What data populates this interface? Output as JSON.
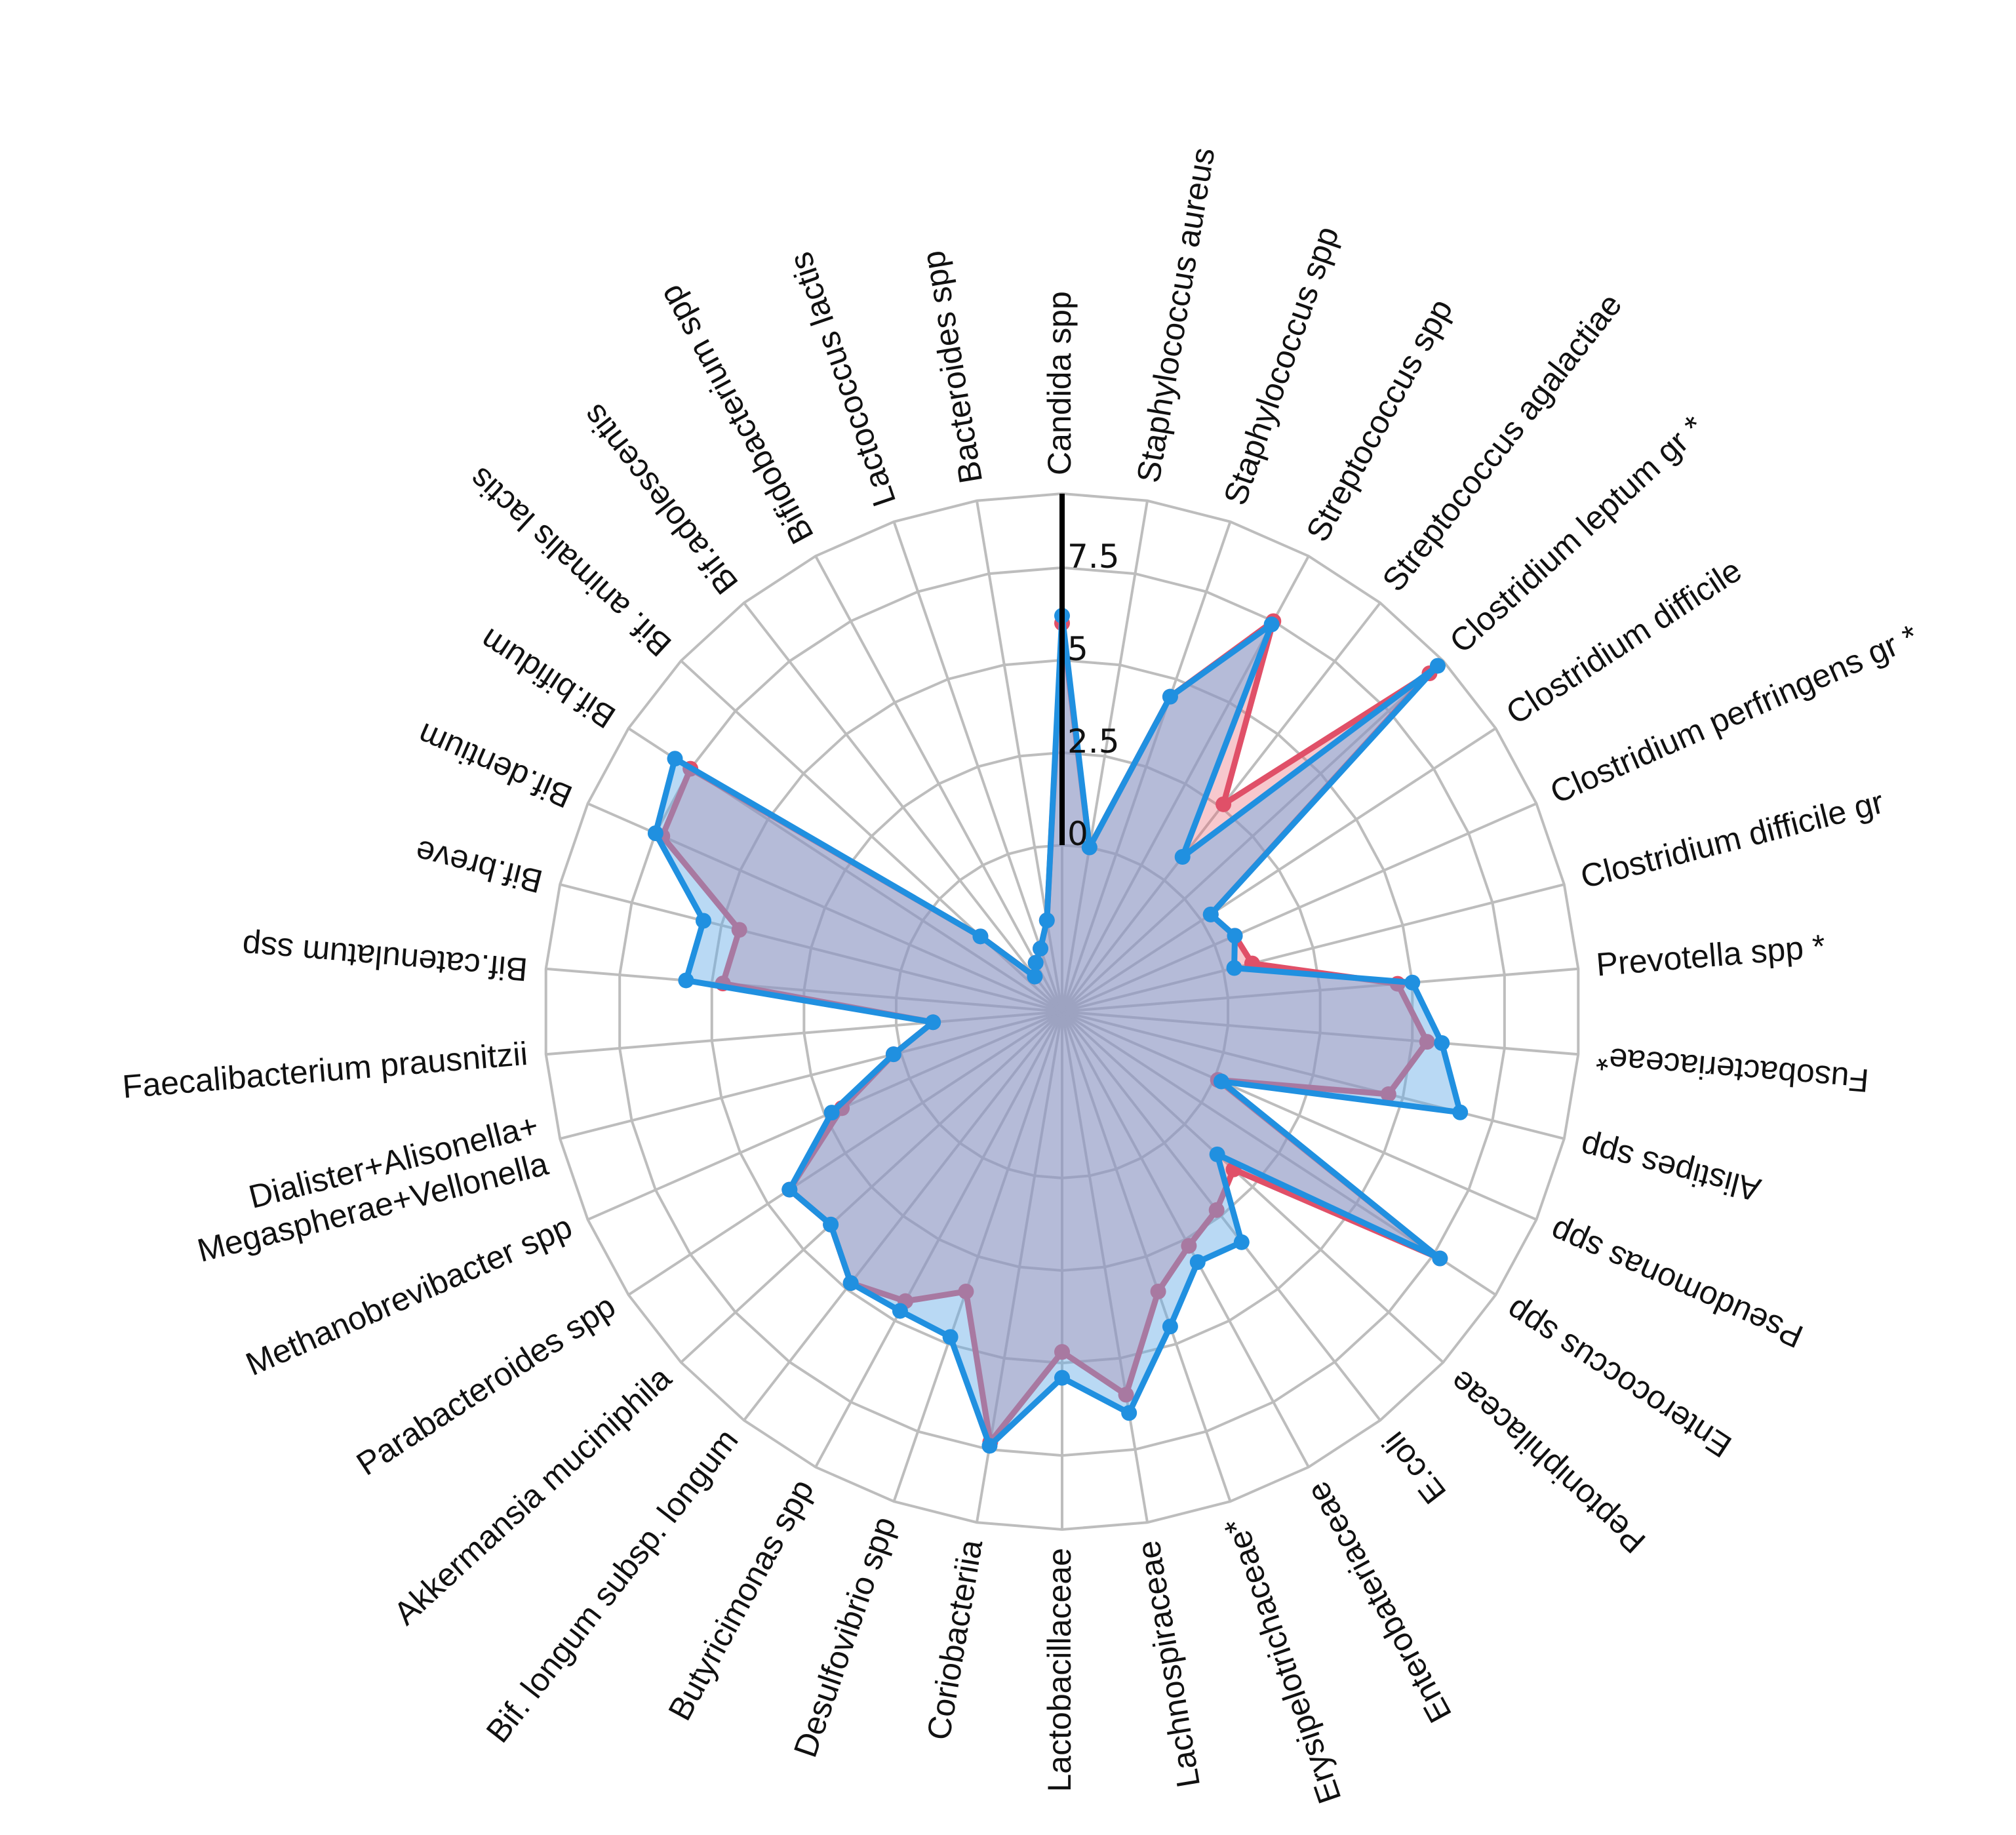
{
  "chart_data": {
    "type": "radar",
    "title": "",
    "categories": [
      "Candida spp",
      "Staphylococcus aureus",
      "Staphylococcus spp",
      "Streptococcus spp",
      "Streptococcus agalactiae",
      "Clostridium leptum gr *",
      "Clostridium difficile",
      "Clostridium perfringens gr *",
      "Clostridium difficile gr",
      "Prevotella spp *",
      "Fusobacteriaceae*",
      "Alistipes spp",
      "Pseudomonas spp",
      "Enterococcus spp",
      "Peptoniphilaceae",
      "E.coli",
      "Enterobateriaceae",
      "Erysipelotrichaceae*",
      "Lachnospiraceae",
      "Lactobacillaceae",
      "Coriobacteriia",
      "Desulfovibrio spp",
      "Butyricimonas spp",
      "Bif. longum subsp. longum",
      "Akkermansia muciniphila",
      "Parabacteroides spp",
      "Methanobrevibacter spp",
      "Dialister+Alisonella+\nMegaspherae+Vellonella",
      "Faecalibacterium prausnitzii",
      "Bif.catenulatum ssp",
      "Bif.breve",
      "Bif.dentium",
      "Bif.bifidum",
      "Bif. animalis lactis",
      "Bif.adolescentis",
      "Bifidobacterium spp",
      "Lactococcus lactis",
      "Bacteroides spp"
    ],
    "rlim": [
      -4.5,
      9.5
    ],
    "rticks": [
      0,
      2.5,
      5,
      7.5
    ],
    "rtick_labels": [
      "0",
      "2.5",
      "5",
      "7.5"
    ],
    "grid": true,
    "series": [
      {
        "color": "#e05068",
        "fill": "rgba(232,96,112,0.35)",
        "values": [
          6.0,
          0.0,
          4.5,
          7.5,
          2.6,
          9.0,
          0.3,
          0.6,
          0.8,
          4.6,
          5.4,
          4.6,
          0.1,
          7.7,
          1.8,
          2.3,
          2.7,
          3.5,
          6.0,
          4.7,
          7.3,
          3.5,
          4.4,
          4.8,
          4.0,
          4.3,
          2.0,
          0.2,
          -1.0,
          4.7,
          4.5,
          7.3,
          7.5,
          -1.5,
          -3.3,
          -3.0,
          -2.7,
          -2.0
        ]
      },
      {
        "color": "#2090e0",
        "fill": "rgba(100,170,230,0.45)",
        "values": [
          6.2,
          0.0,
          4.5,
          7.4,
          0.8,
          9.3,
          0.3,
          0.6,
          0.3,
          5.0,
          5.8,
          6.6,
          0.2,
          7.7,
          1.2,
          3.4,
          3.2,
          4.5,
          6.5,
          5.4,
          7.4,
          4.8,
          4.7,
          4.8,
          4.0,
          4.3,
          2.3,
          0.2,
          -1.0,
          5.7,
          5.5,
          7.5,
          8.0,
          -1.5,
          -3.3,
          -3.0,
          -2.7,
          -2.0
        ]
      }
    ]
  }
}
